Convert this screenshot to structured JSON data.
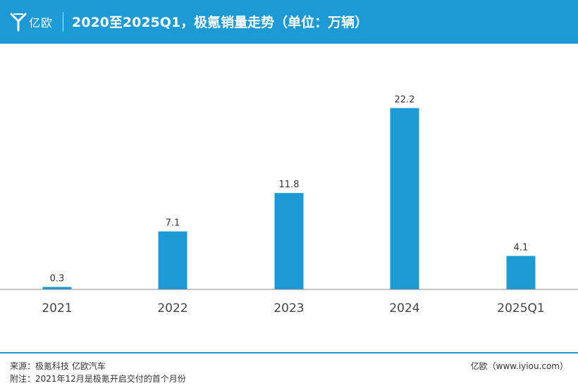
{
  "header": {
    "brand": "亿欧",
    "title": "2020至2025Q1，极氪销量走势（单位：万辆）"
  },
  "chart_data": {
    "type": "bar",
    "title": "2020至2025Q1，极氪销量走势（单位：万辆）",
    "categories": [
      "2021",
      "2022",
      "2023",
      "2024",
      "2025Q1"
    ],
    "values": [
      0.3,
      7.1,
      11.8,
      22.2,
      4.1
    ],
    "value_labels": [
      "0.3",
      "7.1",
      "11.8",
      "22.2",
      "4.1"
    ],
    "xlabel": "",
    "ylabel": "",
    "ylim": [
      0,
      25
    ],
    "grid": false,
    "bar_color": "#1b9ad6"
  },
  "footer": {
    "source": "来源：极氪科技 亿欧汽车",
    "note": "附注：2021年12月是极氪开启交付的首个月份",
    "site": "亿欧（www.iyiou.com）"
  },
  "colors": {
    "accent": "#1b9ad6",
    "text": "#333333",
    "axis": "#888888"
  }
}
